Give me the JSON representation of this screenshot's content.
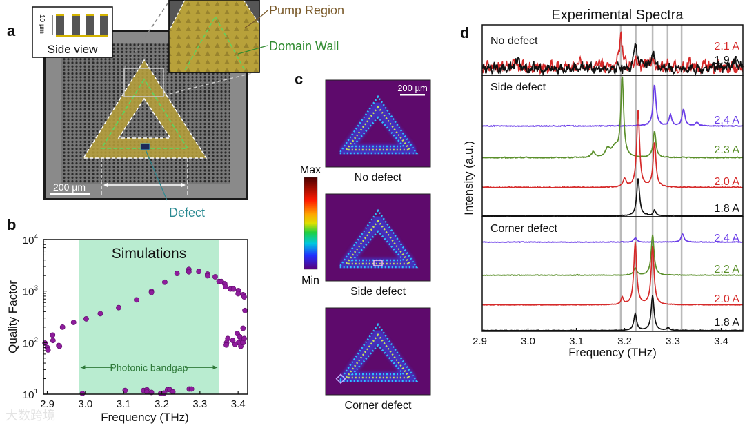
{
  "panel_a": {
    "label": "a",
    "side_view": "Side view",
    "height_scale": "10 µm",
    "scale_bar": "200 µm",
    "pump_region": "Pump Region",
    "domain_wall": "Domain Wall",
    "defect": "Defect"
  },
  "panel_b": {
    "label": "b"
  },
  "panel_c": {
    "label": "c",
    "scale_bar": "200 µm",
    "colorbar_max": "Max",
    "colorbar_min": "Min",
    "maps": [
      "No defect",
      "Side defect",
      "Corner defect"
    ]
  },
  "panel_d": {
    "label": "d"
  },
  "watermark": "大数跨境",
  "colors": {
    "pump": "#b8a13a",
    "domain_wall": "#5fd35f",
    "defect": "#1b2a5a",
    "defect_label": "#2a8a92",
    "pump_label": "#7a5a2a",
    "domain_label": "#2f8a2f",
    "bandgap": "#b9ecd0",
    "points": "#8e1c9c",
    "map_bg": "#5e0a6c"
  },
  "chart_data": [
    {
      "type": "scatter",
      "title": "Simulations",
      "xlabel": "Frequency (THz)",
      "ylabel": "Quality Factor",
      "xlim": [
        2.89,
        3.425
      ],
      "ylim": [
        10,
        10000
      ],
      "yscale": "log",
      "xticks": [
        2.9,
        3.0,
        3.1,
        3.2,
        3.3,
        3.4
      ],
      "xtick_labels": [
        "2.9",
        "3.0",
        "3.1",
        "3.2",
        "3.3",
        "3.4"
      ],
      "yticks": [
        10,
        100,
        1000,
        10000
      ],
      "ytick_labels": [
        [
          "10",
          "1"
        ],
        [
          "10",
          "2"
        ],
        [
          "10",
          "3"
        ],
        [
          "10",
          "4"
        ]
      ],
      "shaded_region": {
        "label": "Photonic bandgap",
        "x": [
          2.983,
          3.35
        ]
      },
      "points": [
        [
          2.894,
          98
        ],
        [
          2.9,
          80
        ],
        [
          2.902,
          72
        ],
        [
          2.914,
          140
        ],
        [
          2.915,
          110
        ],
        [
          2.93,
          88
        ],
        [
          2.932,
          85
        ],
        [
          2.94,
          200
        ],
        [
          2.969,
          247
        ],
        [
          3.002,
          289
        ],
        [
          3.039,
          365
        ],
        [
          3.087,
          477
        ],
        [
          3.134,
          676
        ],
        [
          3.173,
          990
        ],
        [
          3.173,
          940
        ],
        [
          3.208,
          1490
        ],
        [
          3.24,
          2200
        ],
        [
          3.271,
          2630
        ],
        [
          3.271,
          2370
        ],
        [
          3.297,
          2400
        ],
        [
          3.32,
          2140
        ],
        [
          3.32,
          1980
        ],
        [
          3.34,
          1890
        ],
        [
          3.35,
          1540
        ],
        [
          3.356,
          1540
        ],
        [
          3.365,
          1390
        ],
        [
          3.367,
          1220
        ],
        [
          3.38,
          1100
        ],
        [
          3.388,
          1100
        ],
        [
          3.401,
          1020
        ],
        [
          3.4,
          890
        ],
        [
          3.413,
          850
        ],
        [
          3.416,
          770
        ],
        [
          3.418,
          420
        ],
        [
          3.413,
          190
        ],
        [
          3.398,
          150
        ],
        [
          3.404,
          130
        ],
        [
          3.407,
          110
        ],
        [
          3.401,
          100
        ],
        [
          3.392,
          93
        ],
        [
          3.386,
          110
        ],
        [
          3.373,
          120
        ],
        [
          3.37,
          100
        ],
        [
          3.369,
          90
        ],
        [
          3.407,
          85
        ],
        [
          3.413,
          100
        ],
        [
          3.416,
          120
        ],
        [
          2.992,
          10
        ],
        [
          3.104,
          11.8
        ],
        [
          3.152,
          11.8
        ],
        [
          3.161,
          12.2
        ],
        [
          3.161,
          11.1
        ],
        [
          3.173,
          10.8
        ],
        [
          3.197,
          10.3
        ],
        [
          3.206,
          10.5
        ],
        [
          3.215,
          12.2
        ],
        [
          3.221,
          12.2
        ],
        [
          3.229,
          11.1
        ],
        [
          3.272,
          12.6
        ],
        [
          3.278,
          12.6
        ]
      ]
    },
    {
      "type": "line",
      "title": "Experimental Spectra",
      "xlabel": "Frequency (THz)",
      "ylabel": "Intensity (a.u.)",
      "xlim": [
        2.905,
        3.445
      ],
      "xticks": [
        2.9,
        3.0,
        3.1,
        3.2,
        3.3,
        3.4
      ],
      "xtick_labels": [
        "2.9",
        "3.0",
        "3.1",
        "3.2",
        "3.3",
        "3.4"
      ],
      "reference_lines": [
        3.192,
        3.223,
        3.258,
        3.289,
        3.318
      ],
      "panels": [
        {
          "title": "No defect",
          "ymax": 73,
          "series": [
            {
              "name": "2.1 A",
              "color": "#d62a2a",
              "offset": 6,
              "noise": 9,
              "seed": 3,
              "peaks": [
                [
                  3.192,
                  44,
                  0.004
                ],
                [
                  3.223,
                  8,
                  0.005
                ],
                [
                  3.258,
                  8,
                  0.005
                ]
              ]
            },
            {
              "name": "1.9 A",
              "color": "#111111",
              "offset": 4,
              "noise": 8,
              "seed": 7,
              "peaks": [
                [
                  3.223,
                  38,
                  0.004
                ],
                [
                  3.258,
                  26,
                  0.004
                ],
                [
                  2.98,
                  10,
                  0.006
                ],
                [
                  3.43,
                  10,
                  0.008
                ]
              ]
            }
          ]
        },
        {
          "title": "Side defect",
          "ymax": 205,
          "series": [
            {
              "name": "2.4 A",
              "color": "#6a3de8",
              "offset": 131,
              "noise": 1.5,
              "seed": 11,
              "peaks": [
                [
                  3.262,
                  60,
                  0.0035
                ],
                [
                  3.295,
                  16,
                  0.003
                ],
                [
                  3.322,
                  24,
                  0.0035
                ],
                [
                  3.35,
                  5,
                  0.004
                ]
              ]
            },
            {
              "name": "2.3 A",
              "color": "#5a8f2a",
              "offset": 85,
              "noise": 1.5,
              "seed": 13,
              "peaks": [
                [
                  3.195,
                  116,
                  0.0035
                ],
                [
                  3.262,
                  38,
                  0.0035
                ],
                [
                  3.135,
                  8,
                  0.004
                ],
                [
                  3.165,
                  12,
                  0.005
                ],
                [
                  3.18,
                  14,
                  0.008
                ]
              ]
            },
            {
              "name": "2.0 A",
              "color": "#d62a2a",
              "offset": 42,
              "noise": 1.5,
              "seed": 17,
              "peaks": [
                [
                  3.228,
                  112,
                  0.0035
                ],
                [
                  3.262,
                  64,
                  0.0035
                ],
                [
                  3.2,
                  12,
                  0.004
                ]
              ]
            },
            {
              "name": "1.8 A",
              "color": "#111111",
              "offset": 1,
              "noise": 1,
              "seed": 19,
              "peaks": [
                [
                  3.228,
                  54,
                  0.0035
                ],
                [
                  3.262,
                  8,
                  0.003
                ]
              ]
            }
          ]
        },
        {
          "title": "Corner defect",
          "ymax": 166,
          "series": [
            {
              "name": "2.4 A",
              "color": "#6a3de8",
              "offset": 129,
              "noise": 1,
              "seed": 23,
              "peaks": [
                [
                  3.222,
                  6,
                  0.004
                ],
                [
                  3.32,
                  12,
                  0.0035
                ]
              ]
            },
            {
              "name": "2.2 A",
              "color": "#5a8f2a",
              "offset": 81,
              "noise": 1,
              "seed": 29,
              "peaks": [
                [
                  3.258,
                  59,
                  0.0035
                ],
                [
                  3.222,
                  10,
                  0.004
                ]
              ]
            },
            {
              "name": "2.0 A",
              "color": "#d62a2a",
              "offset": 38,
              "noise": 1,
              "seed": 31,
              "peaks": [
                [
                  3.222,
                  90,
                  0.0035
                ],
                [
                  3.258,
                  85,
                  0.0035
                ],
                [
                  3.195,
                  10,
                  0.003
                ]
              ]
            },
            {
              "name": "1.8 A",
              "color": "#111111",
              "offset": 1,
              "noise": 0.8,
              "seed": 37,
              "peaks": [
                [
                  3.222,
                  24,
                  0.0035
                ],
                [
                  3.258,
                  51,
                  0.0035
                ],
                [
                  3.29,
                  4,
                  0.003
                ]
              ]
            }
          ]
        }
      ]
    }
  ]
}
